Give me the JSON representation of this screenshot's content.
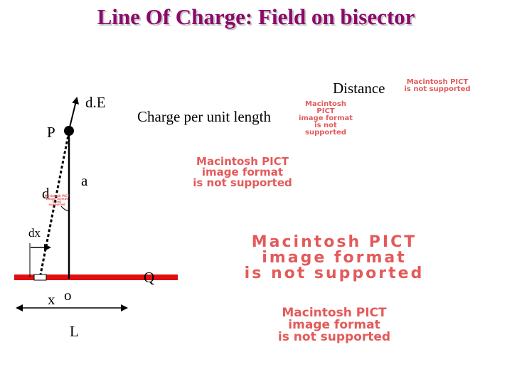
{
  "title": "Line Of Charge: Field on bisector",
  "labels": {
    "distance": "Distance",
    "field": "d.E",
    "charge_per_length": "Charge per unit length",
    "point": "P",
    "a": "a",
    "d": "d",
    "dx": "dx",
    "Q": "Q",
    "x": "x",
    "o": "o",
    "L": "L"
  },
  "pict_placeholder": {
    "line1": "Macintosh PICT",
    "line2": "image format",
    "line3": "is not supported"
  },
  "colors": {
    "title": "#8b0a6a",
    "rod": "#e01010",
    "placeholder_text": "#e35a5a"
  }
}
